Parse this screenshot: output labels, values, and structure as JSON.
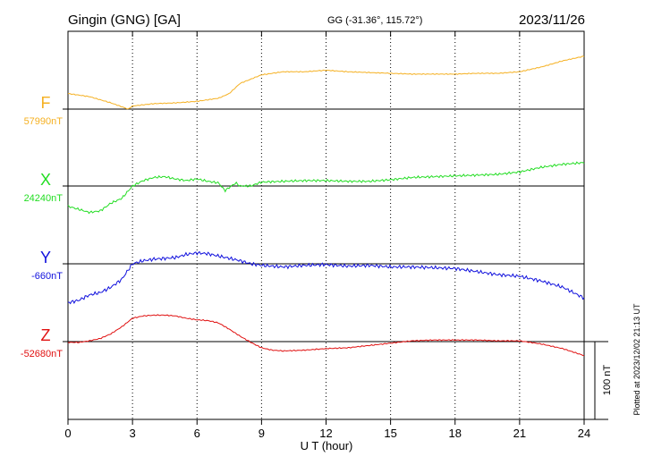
{
  "header": {
    "station": "Gingin (GNG)  [GA]",
    "coords": "GG (-31.36°, 115.72°)",
    "date": "2023/11/26"
  },
  "side_note": "Plotted at 2023/12/02 21:13 UT",
  "colors": {
    "F": "#f5b021",
    "X": "#22dd22",
    "Y": "#1010dd",
    "Z": "#e01010"
  },
  "chart_data": {
    "type": "line",
    "xlabel": "U T (hour)",
    "ylabel": "",
    "xlim": [
      0,
      24
    ],
    "x_ticks": [
      0,
      3,
      6,
      9,
      12,
      15,
      18,
      21,
      24
    ],
    "grid": true,
    "scale_bar": {
      "label": "100 nT",
      "value_nT": 100
    },
    "series": [
      {
        "name": "F",
        "baseline_label": "57990nT",
        "baseline_nT": 57990,
        "x": [
          0,
          1,
          2,
          2.8,
          3,
          4,
          5,
          6,
          7,
          7.5,
          8,
          9,
          10,
          11,
          12,
          13,
          14,
          15,
          16,
          17,
          18,
          19,
          20,
          21,
          22,
          23,
          24
        ],
        "y": [
          58010,
          58006,
          57998,
          57990,
          57994,
          57997,
          57998,
          58000,
          58004,
          58010,
          58023,
          58034,
          58038,
          58038,
          58040,
          58038,
          58037,
          58036,
          58035,
          58035,
          58035,
          58036,
          58036,
          58038,
          58044,
          58052,
          58058
        ]
      },
      {
        "name": "X",
        "baseline_label": "24240nT",
        "baseline_nT": 24240,
        "x": [
          0,
          0.5,
          1,
          1.5,
          2,
          2.5,
          3,
          3.5,
          4,
          4.5,
          5,
          5.5,
          6,
          6.5,
          7,
          7.3,
          7.5,
          7.8,
          8,
          8.5,
          9,
          10,
          11,
          12,
          13,
          14,
          15,
          16,
          17,
          18,
          19,
          20,
          21,
          22,
          23,
          24
        ],
        "y": [
          24214,
          24210,
          24206,
          24208,
          24218,
          24224,
          24240,
          24247,
          24251,
          24252,
          24249,
          24247,
          24249,
          24246,
          24244,
          24234,
          24238,
          24244,
          24240,
          24240,
          24245,
          24246,
          24247,
          24247,
          24246,
          24246,
          24248,
          24251,
          24252,
          24253,
          24254,
          24255,
          24258,
          24264,
          24268,
          24270
        ]
      },
      {
        "name": "Y",
        "baseline_label": "-660nT",
        "baseline_nT": -660,
        "x": [
          0,
          0.5,
          1,
          1.5,
          2,
          2.5,
          3,
          3.5,
          4,
          4.5,
          5,
          5.5,
          6,
          6.5,
          7,
          7.5,
          8,
          8.5,
          9,
          10,
          11,
          12,
          13,
          14,
          15,
          16,
          17,
          18,
          19,
          20,
          21,
          22,
          23,
          24
        ],
        "y": [
          -710,
          -707,
          -700,
          -697,
          -690,
          -680,
          -660,
          -656,
          -654,
          -653,
          -652,
          -648,
          -646,
          -647,
          -650,
          -653,
          -656,
          -660,
          -662,
          -664,
          -662,
          -661,
          -663,
          -662,
          -664,
          -664,
          -665,
          -666,
          -670,
          -674,
          -676,
          -682,
          -690,
          -704
        ]
      },
      {
        "name": "Z",
        "baseline_label": "-52680nT",
        "baseline_nT": -52680,
        "x": [
          0,
          0.5,
          1,
          1.5,
          2,
          2.5,
          3,
          3.5,
          4,
          4.5,
          5,
          5.5,
          6,
          6.5,
          7,
          7.5,
          8,
          8.5,
          9,
          9.5,
          10,
          11,
          12,
          13,
          14,
          15,
          16,
          17,
          18,
          19,
          20,
          21,
          22,
          23,
          24
        ],
        "y": [
          -52681,
          -52681,
          -52679,
          -52676,
          -52670,
          -52661,
          -52650,
          -52647,
          -52646,
          -52646,
          -52647,
          -52650,
          -52652,
          -52653,
          -52656,
          -52664,
          -52673,
          -52681,
          -52688,
          -52691,
          -52692,
          -52691,
          -52689,
          -52688,
          -52685,
          -52682,
          -52679,
          -52678,
          -52678,
          -52678,
          -52679,
          -52679,
          -52683,
          -52689,
          -52698
        ]
      }
    ]
  }
}
